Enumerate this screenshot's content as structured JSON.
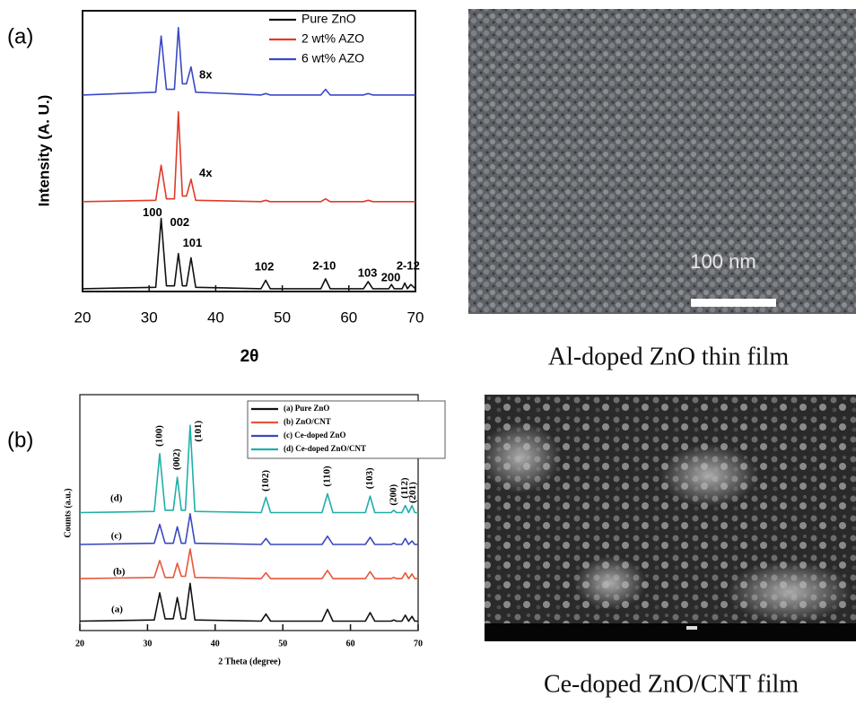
{
  "chart_data": [
    {
      "type": "line",
      "panel_label": "(a)",
      "xlabel": "2θ",
      "ylabel": "Intensity (A. U.)",
      "xlim": [
        20,
        70
      ],
      "xticks": [
        20,
        30,
        40,
        50,
        60,
        70
      ],
      "ylim": [
        0,
        100
      ],
      "legend": "upper right",
      "x": [
        20,
        31,
        31.8,
        32.6,
        33.8,
        34.4,
        35,
        35.6,
        36.3,
        37,
        46.8,
        47.5,
        48.2,
        55.8,
        56.5,
        57.2,
        62.2,
        62.9,
        63.6,
        66,
        66.4,
        66.8,
        68,
        68.4,
        68.8,
        69.3,
        70
      ],
      "series": [
        {
          "name": "Pure ZnO",
          "color": "#111111",
          "values": [
            1,
            1.5,
            26,
            2,
            2,
            13.5,
            2,
            2,
            12,
            1.5,
            1,
            4,
            1,
            1,
            4.5,
            1,
            1,
            3.5,
            1,
            1,
            2.5,
            1,
            1,
            3,
            1,
            2.5,
            1
          ]
        },
        {
          "name": "2 wt% AZO",
          "color": "#e03a2a",
          "values": [
            32,
            32.5,
            45,
            33,
            33,
            64,
            34,
            34,
            40,
            32.5,
            32,
            32.5,
            32,
            32,
            33,
            32,
            32,
            32.5,
            32,
            32,
            32,
            32,
            32,
            32,
            32,
            32,
            32
          ]
        },
        {
          "name": "6 wt% AZO",
          "color": "#3a48c8",
          "values": [
            70,
            71,
            91,
            72,
            72,
            94,
            74,
            74,
            80,
            71,
            70,
            70.5,
            70,
            70,
            72,
            70,
            70,
            70.5,
            70,
            70,
            70,
            70,
            70,
            70,
            70,
            70,
            70
          ]
        }
      ],
      "annotations": [
        {
          "text": "8x",
          "x": 38.5,
          "y": 77
        },
        {
          "text": "4x",
          "x": 38.5,
          "y": 42
        },
        {
          "text": "100",
          "x": 30.5,
          "y": 28
        },
        {
          "text": "002",
          "x": 34.6,
          "y": 24.5
        },
        {
          "text": "101",
          "x": 36.5,
          "y": 17
        },
        {
          "text": "102",
          "x": 47.3,
          "y": 8.6
        },
        {
          "text": "2-10",
          "x": 56.3,
          "y": 9
        },
        {
          "text": "103",
          "x": 62.8,
          "y": 6.4
        },
        {
          "text": "200",
          "x": 66.3,
          "y": 4.8
        },
        {
          "text": "2-12",
          "x": 68.9,
          "y": 9
        }
      ]
    },
    {
      "type": "line",
      "panel_label": "(b)",
      "xlabel": "2 Theta (degree)",
      "ylabel": "Counts (a.u.)",
      "xlim": [
        20,
        70
      ],
      "xticks": [
        20,
        30,
        40,
        50,
        60,
        70
      ],
      "ylim": [
        0,
        100
      ],
      "legend": "upper right",
      "x": [
        20,
        31,
        31.8,
        32.6,
        33.8,
        34.4,
        35,
        35.6,
        36.3,
        37,
        46.8,
        47.5,
        48.2,
        55.8,
        56.6,
        57.4,
        62.2,
        62.9,
        63.6,
        66,
        66.4,
        66.8,
        67.6,
        68.1,
        68.6,
        69.1,
        69.5,
        70
      ],
      "series": [
        {
          "name": "(a) Pure ZnO",
          "color": "#111111",
          "values": [
            4,
            4.5,
            16,
            5,
            5,
            14,
            5,
            5,
            20,
            4.5,
            4,
            7,
            4,
            4,
            9,
            4,
            4,
            7.6,
            4,
            4,
            4.5,
            4,
            4,
            6.5,
            4,
            6,
            4,
            4
          ]
        },
        {
          "name": "(b) ZnO/CNT",
          "color": "#e8553a",
          "values": [
            22,
            22.5,
            29.7,
            22.5,
            22.5,
            28.5,
            23,
            23,
            34.6,
            22.5,
            22,
            24.5,
            22,
            22,
            25.5,
            22,
            22,
            25,
            22,
            22,
            22.5,
            22,
            22,
            24.5,
            22,
            24,
            22,
            22
          ]
        },
        {
          "name": "(c) Ce-doped ZnO",
          "color": "#3a48c0",
          "values": [
            36.5,
            37,
            45,
            37,
            37,
            44,
            37,
            37,
            49.5,
            37,
            36.5,
            39,
            36.5,
            36.5,
            40,
            36.5,
            36.5,
            39.5,
            36.5,
            36.5,
            37,
            36.5,
            36.5,
            39,
            36.5,
            38,
            36.5,
            36.5
          ]
        },
        {
          "name": "(d) Ce-doped ZnO/CNT",
          "color": "#1fb0a8",
          "values": [
            50,
            50.5,
            75,
            51,
            51,
            65,
            51,
            51,
            87,
            50.5,
            50,
            56.5,
            50,
            50,
            58,
            50,
            50,
            57,
            50,
            50,
            51,
            50,
            50,
            53,
            50,
            53,
            50,
            50
          ]
        }
      ],
      "annotations": [
        {
          "text": "(a)",
          "x": 25.5,
          "y": 8.7
        },
        {
          "text": "(b)",
          "x": 25.8,
          "y": 24.7
        },
        {
          "text": "(c)",
          "x": 25.4,
          "y": 40
        },
        {
          "text": "(d)",
          "x": 25.4,
          "y": 56
        },
        {
          "text": "(100)",
          "x": 31.8,
          "y": 78
        },
        {
          "text": "(002)",
          "x": 34.4,
          "y": 68
        },
        {
          "text": "(101)",
          "x": 37.6,
          "y": 80
        },
        {
          "text": "(102)",
          "x": 47.5,
          "y": 59
        },
        {
          "text": "(110)",
          "x": 56.6,
          "y": 61
        },
        {
          "text": "(103)",
          "x": 62.9,
          "y": 60
        },
        {
          "text": "(200)",
          "x": 66.4,
          "y": 53
        },
        {
          "text": "(112)",
          "x": 68.1,
          "y": 56
        },
        {
          "text": "(201)",
          "x": 69.3,
          "y": 54
        }
      ]
    }
  ],
  "images": [
    {
      "caption": "Al-doped ZnO thin film",
      "scale_label": "100 nm"
    },
    {
      "caption": "Ce-doped ZnO/CNT film"
    }
  ]
}
